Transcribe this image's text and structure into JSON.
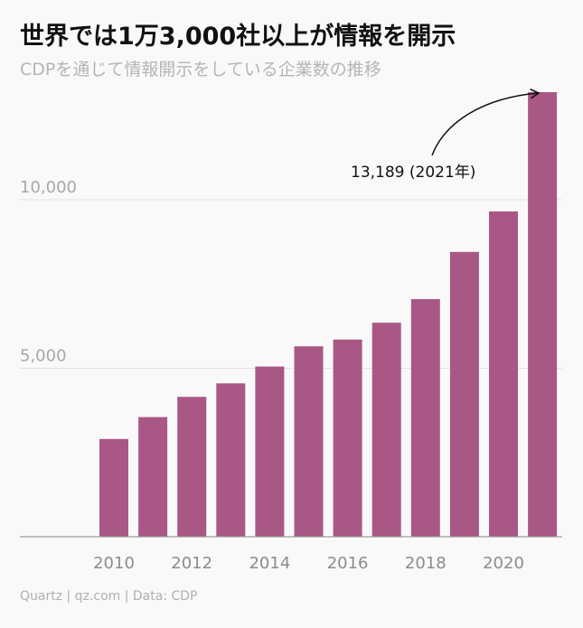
{
  "title": "世界では1万3,000社以上が情報を開示",
  "subtitle": "CDPを通じて情報開示をしている企業数の推移",
  "footer": "Quartz | qz.com | Data: CDP",
  "colors": {
    "bar": "#a95885",
    "grid": "#e3e3e3",
    "axis": "#9a9a9a"
  },
  "chart_data": {
    "type": "bar",
    "title": "世界では1万3,000社以上が情報を開示",
    "subtitle": "CDPを通じて情報開示をしている企業数の推移",
    "categories": [
      2010,
      2011,
      2012,
      2013,
      2014,
      2015,
      2016,
      2017,
      2018,
      2019,
      2020,
      2021
    ],
    "values": [
      2900,
      3550,
      4150,
      4550,
      5050,
      5650,
      5850,
      6350,
      7050,
      8450,
      9650,
      13189
    ],
    "ylim": [
      0,
      13189
    ],
    "yticks": [
      {
        "value": 5000,
        "label": "5,000"
      },
      {
        "value": 10000,
        "label": "10,000"
      }
    ],
    "xticks": [
      {
        "value": 2010,
        "label": "2010"
      },
      {
        "value": 2012,
        "label": "2012"
      },
      {
        "value": 2014,
        "label": "2014"
      },
      {
        "value": 2016,
        "label": "2016"
      },
      {
        "value": 2018,
        "label": "2018"
      },
      {
        "value": 2020,
        "label": "2020"
      }
    ],
    "grid": true,
    "annotation": {
      "target": 2021,
      "text": "13,189 (2021年)"
    }
  }
}
